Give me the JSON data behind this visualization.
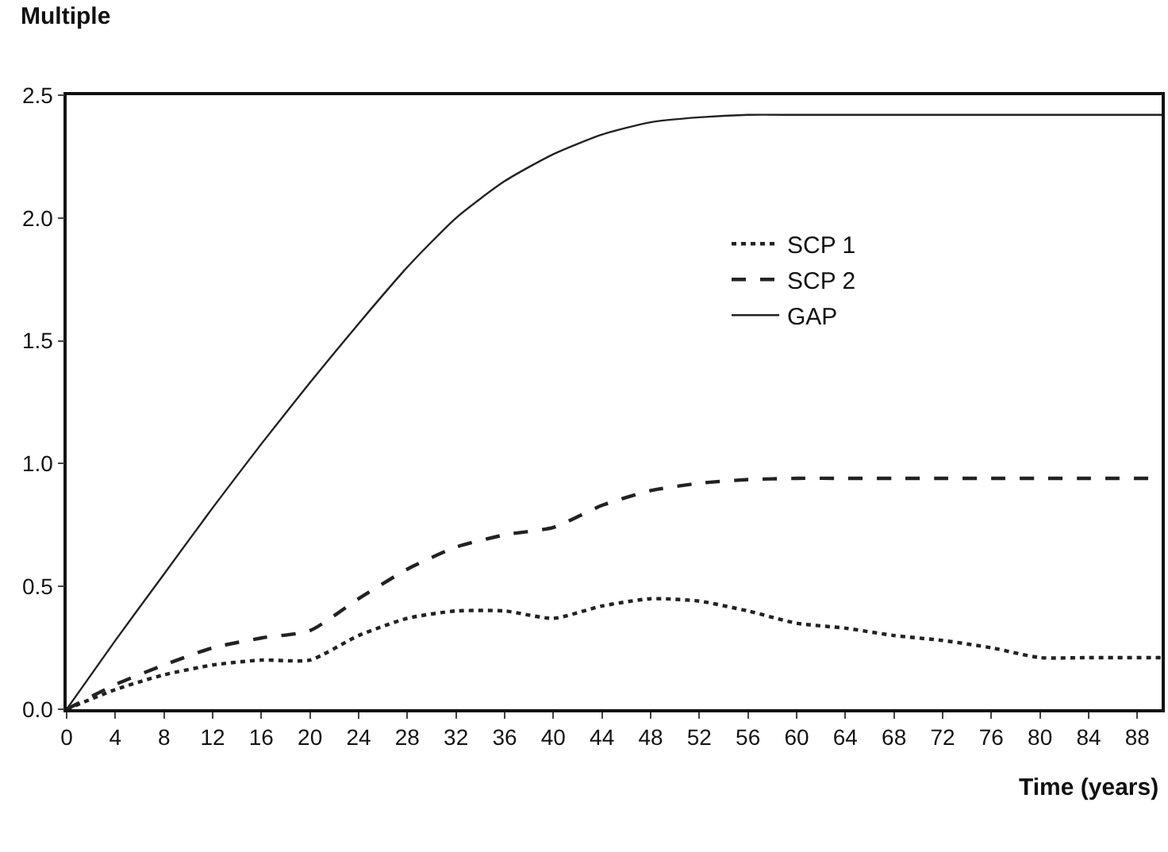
{
  "chart_data": {
    "type": "line",
    "ylabel": "Multiple",
    "xlabel": "Time (years)",
    "x": [
      0,
      4,
      8,
      12,
      16,
      20,
      24,
      28,
      32,
      36,
      40,
      44,
      48,
      52,
      56,
      60,
      64,
      68,
      72,
      76,
      80,
      84,
      90
    ],
    "xlim": [
      0,
      90
    ],
    "xticks": [
      0,
      4,
      8,
      12,
      16,
      20,
      24,
      28,
      32,
      36,
      40,
      44,
      48,
      52,
      56,
      60,
      64,
      68,
      72,
      76,
      80,
      84,
      88
    ],
    "ylim": [
      0,
      2.5
    ],
    "yticks": [
      {
        "value": 0,
        "label": "0.0"
      },
      0.5,
      {
        "value": 1,
        "label": "1.0"
      },
      1.5,
      {
        "value": 2,
        "label": "2.0"
      },
      2.5
    ],
    "grid": false,
    "legend": "right",
    "marker": "none",
    "series": [
      {
        "name": "SCP 1",
        "color": "#222222",
        "line_style": "dotted",
        "values": [
          0,
          0.08,
          0.14,
          0.18,
          0.2,
          0.2,
          0.3,
          0.37,
          0.4,
          0.4,
          0.37,
          0.42,
          0.45,
          0.44,
          0.4,
          0.35,
          0.33,
          0.3,
          0.28,
          0.25,
          0.21,
          0.21,
          0.21
        ]
      },
      {
        "name": "SCP 2",
        "color": "#222222",
        "line_style": "dashed",
        "values": [
          0,
          0.1,
          0.18,
          0.25,
          0.29,
          0.32,
          0.45,
          0.57,
          0.66,
          0.71,
          0.74,
          0.83,
          0.89,
          0.92,
          0.935,
          0.94,
          0.94,
          0.94,
          0.94,
          0.94,
          0.94,
          0.94,
          0.94
        ]
      },
      {
        "name": "GAP",
        "color": "#222222",
        "line_style": "solid",
        "values": [
          0,
          0.28,
          0.55,
          0.82,
          1.08,
          1.33,
          1.57,
          1.8,
          2.0,
          2.15,
          2.26,
          2.34,
          2.39,
          2.41,
          2.42,
          2.42,
          2.42,
          2.42,
          2.42,
          2.42,
          2.42,
          2.42,
          2.42
        ]
      }
    ]
  }
}
